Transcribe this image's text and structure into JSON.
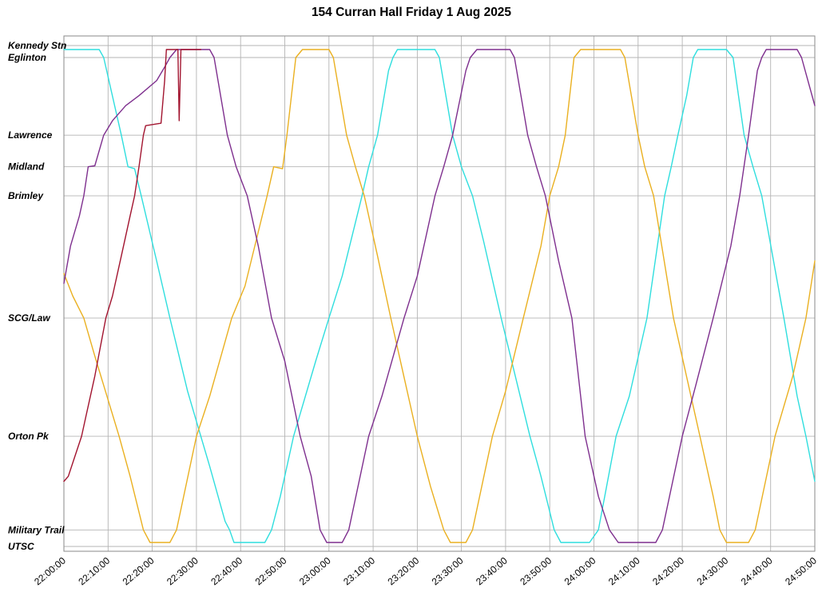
{
  "title": "154 Curran Hall Friday 1 Aug 2025",
  "chart_data": {
    "type": "line",
    "subtype": "transit-stringline",
    "title": "154 Curran Hall Friday 1 Aug 2025",
    "x_unit": "minutes after 22:00:00",
    "xlim": [
      0,
      170
    ],
    "ylim": [
      0,
      100
    ],
    "grid": true,
    "legend": "none",
    "x_ticks": [
      {
        "t": 0,
        "label": "22:00:00"
      },
      {
        "t": 10,
        "label": "22:10:00"
      },
      {
        "t": 20,
        "label": "22:20:00"
      },
      {
        "t": 30,
        "label": "22:30:00"
      },
      {
        "t": 40,
        "label": "22:40:00"
      },
      {
        "t": 50,
        "label": "22:50:00"
      },
      {
        "t": 60,
        "label": "23:00:00"
      },
      {
        "t": 70,
        "label": "23:10:00"
      },
      {
        "t": 80,
        "label": "23:20:00"
      },
      {
        "t": 90,
        "label": "23:30:00"
      },
      {
        "t": 100,
        "label": "23:40:00"
      },
      {
        "t": 110,
        "label": "23:50:00"
      },
      {
        "t": 120,
        "label": "24:00:00"
      },
      {
        "t": 130,
        "label": "24:10:00"
      },
      {
        "t": 140,
        "label": "24:20:00"
      },
      {
        "t": 150,
        "label": "24:30:00"
      },
      {
        "t": 160,
        "label": "24:40:00"
      },
      {
        "t": 170,
        "label": "24:50:00"
      }
    ],
    "stations": [
      {
        "name": "Kennedy Stn",
        "pos": 100
      },
      {
        "name": "Eglinton",
        "pos": 97.6
      },
      {
        "name": "Lawrence",
        "pos": 82.1
      },
      {
        "name": "Midland",
        "pos": 75.8
      },
      {
        "name": "Brimley",
        "pos": 70.0
      },
      {
        "name": "SCG/Law",
        "pos": 45.6
      },
      {
        "name": "Orton Pk",
        "pos": 22.0
      },
      {
        "name": "Military Trail",
        "pos": 3.3
      },
      {
        "name": "UTSC",
        "pos": 0
      }
    ],
    "series": [
      {
        "name": "cyan",
        "color": "#2fdede",
        "points": [
          [
            0,
            99.2
          ],
          [
            8,
            99.2
          ],
          [
            9,
            97.6
          ],
          [
            13,
            82.1
          ],
          [
            14.5,
            75.8
          ],
          [
            16,
            75.4
          ],
          [
            17.5,
            70
          ],
          [
            21,
            57
          ],
          [
            24,
            45.6
          ],
          [
            28,
            31
          ],
          [
            31,
            22
          ],
          [
            33,
            16
          ],
          [
            36.5,
            5
          ],
          [
            37.5,
            3.3
          ],
          [
            38.5,
            0.8
          ],
          [
            45.5,
            0.8
          ],
          [
            47,
            3.3
          ],
          [
            49,
            10
          ],
          [
            52,
            22
          ],
          [
            57,
            37
          ],
          [
            60,
            45.6
          ],
          [
            63,
            54
          ],
          [
            67.5,
            70
          ],
          [
            69,
            75.8
          ],
          [
            71,
            82.1
          ],
          [
            73.5,
            95
          ],
          [
            74.5,
            97.6
          ],
          [
            75.5,
            99.2
          ],
          [
            84,
            99.2
          ],
          [
            85,
            97.6
          ],
          [
            88,
            82.1
          ],
          [
            90,
            75.8
          ],
          [
            92.5,
            70
          ],
          [
            95,
            61
          ],
          [
            99,
            45.6
          ],
          [
            105.5,
            22
          ],
          [
            108,
            14
          ],
          [
            111,
            3.3
          ],
          [
            112.5,
            0.8
          ],
          [
            119,
            0.8
          ],
          [
            121,
            3.3
          ],
          [
            125,
            22
          ],
          [
            128,
            30
          ],
          [
            132,
            45.6
          ],
          [
            136,
            70
          ],
          [
            137.5,
            75.8
          ],
          [
            139,
            82.1
          ],
          [
            141,
            90
          ],
          [
            142.5,
            97.6
          ],
          [
            143.5,
            99.2
          ],
          [
            150,
            99.2
          ],
          [
            151.5,
            97.6
          ],
          [
            154,
            82.1
          ],
          [
            156,
            75.8
          ],
          [
            158,
            70
          ],
          [
            163,
            45.6
          ],
          [
            166,
            30
          ],
          [
            168,
            22
          ],
          [
            170,
            13
          ]
        ]
      },
      {
        "name": "gold",
        "color": "#eab020",
        "points": [
          [
            0,
            54.5
          ],
          [
            2,
            50
          ],
          [
            4.5,
            45.6
          ],
          [
            7,
            38
          ],
          [
            12.5,
            22
          ],
          [
            15,
            14
          ],
          [
            18,
            3.3
          ],
          [
            19.5,
            0.8
          ],
          [
            24,
            0.8
          ],
          [
            25.5,
            3.3
          ],
          [
            30,
            22
          ],
          [
            33,
            30
          ],
          [
            38,
            45.6
          ],
          [
            41,
            52
          ],
          [
            46,
            70
          ],
          [
            47.5,
            75.8
          ],
          [
            49.5,
            75.4
          ],
          [
            50.5,
            82.1
          ],
          [
            52.5,
            97.6
          ],
          [
            54,
            99.2
          ],
          [
            60,
            99.2
          ],
          [
            61,
            97.6
          ],
          [
            64,
            82.1
          ],
          [
            66,
            75.8
          ],
          [
            68,
            70
          ],
          [
            71,
            58
          ],
          [
            74,
            45.6
          ],
          [
            80,
            22
          ],
          [
            83,
            12
          ],
          [
            86,
            3.3
          ],
          [
            87.5,
            0.8
          ],
          [
            91,
            0.8
          ],
          [
            92.5,
            3.3
          ],
          [
            97,
            22
          ],
          [
            100,
            31
          ],
          [
            104,
            45.6
          ],
          [
            108,
            60
          ],
          [
            110,
            70
          ],
          [
            112,
            75.8
          ],
          [
            113.5,
            82.1
          ],
          [
            115.5,
            97.6
          ],
          [
            117,
            99.2
          ],
          [
            126,
            99.2
          ],
          [
            127,
            97.6
          ],
          [
            130,
            82.1
          ],
          [
            131.5,
            75.8
          ],
          [
            133.5,
            70
          ],
          [
            138,
            45.6
          ],
          [
            144,
            22
          ],
          [
            147,
            10
          ],
          [
            148.5,
            3.3
          ],
          [
            150,
            0.8
          ],
          [
            155,
            0.8
          ],
          [
            156.5,
            3.3
          ],
          [
            161,
            22
          ],
          [
            165,
            34
          ],
          [
            168,
            45.6
          ],
          [
            170,
            57
          ]
        ]
      },
      {
        "name": "purple",
        "color": "#7e2f8e",
        "points": [
          [
            0,
            52.5
          ],
          [
            1.5,
            60
          ],
          [
            3.5,
            66
          ],
          [
            4.5,
            70
          ],
          [
            5.5,
            75.8
          ],
          [
            7,
            76
          ],
          [
            9,
            82.1
          ],
          [
            11,
            85
          ],
          [
            14,
            88
          ],
          [
            17,
            90
          ],
          [
            21,
            93
          ],
          [
            23,
            96
          ],
          [
            24,
            97.6
          ],
          [
            25.5,
            99.2
          ],
          [
            33,
            99.2
          ],
          [
            34,
            97.6
          ],
          [
            37,
            82.1
          ],
          [
            39,
            75.8
          ],
          [
            41.5,
            70
          ],
          [
            44,
            60
          ],
          [
            47,
            45.6
          ],
          [
            50,
            37
          ],
          [
            53.5,
            22
          ],
          [
            56,
            14
          ],
          [
            58,
            3.3
          ],
          [
            59.5,
            0.8
          ],
          [
            63,
            0.8
          ],
          [
            64.5,
            3.3
          ],
          [
            69,
            22
          ],
          [
            72,
            30
          ],
          [
            77,
            45.6
          ],
          [
            80,
            54
          ],
          [
            84,
            70
          ],
          [
            86,
            75.8
          ],
          [
            88,
            82.1
          ],
          [
            91,
            95
          ],
          [
            92,
            97.6
          ],
          [
            93.5,
            99.2
          ],
          [
            101,
            99.2
          ],
          [
            102,
            97.6
          ],
          [
            105,
            82.1
          ],
          [
            107,
            75.8
          ],
          [
            109,
            70
          ],
          [
            112,
            57
          ],
          [
            115,
            45.6
          ],
          [
            118,
            22
          ],
          [
            121,
            10
          ],
          [
            123.5,
            3.3
          ],
          [
            125.5,
            0.8
          ],
          [
            134,
            0.8
          ],
          [
            135.5,
            3.3
          ],
          [
            140,
            22
          ],
          [
            143,
            32
          ],
          [
            147,
            45.6
          ],
          [
            151,
            60
          ],
          [
            153,
            70
          ],
          [
            155,
            82.1
          ],
          [
            157,
            95
          ],
          [
            158,
            97.6
          ],
          [
            159,
            99.2
          ],
          [
            166,
            99.2
          ],
          [
            167,
            97.6
          ],
          [
            170,
            88
          ]
        ]
      },
      {
        "name": "darkred",
        "color": "#a2142f",
        "points": [
          [
            0,
            13
          ],
          [
            1,
            14
          ],
          [
            2.5,
            18
          ],
          [
            4,
            22
          ],
          [
            5,
            26
          ],
          [
            7,
            34
          ],
          [
            9.5,
            45.6
          ],
          [
            11,
            50
          ],
          [
            13,
            58
          ],
          [
            15,
            66
          ],
          [
            16,
            70
          ],
          [
            17,
            75.8
          ],
          [
            18,
            82.1
          ],
          [
            18.5,
            84
          ],
          [
            22,
            84.5
          ],
          [
            22.8,
            93
          ],
          [
            23.2,
            99.2
          ],
          [
            25.8,
            99.2
          ],
          [
            26.1,
            85
          ],
          [
            26.5,
            99.2
          ],
          [
            31,
            99.2
          ]
        ]
      }
    ]
  }
}
